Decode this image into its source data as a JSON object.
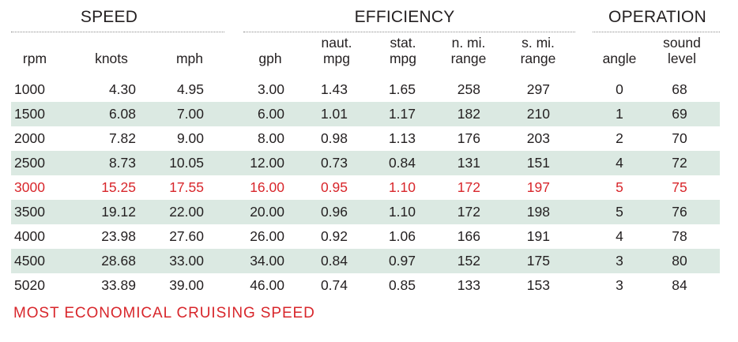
{
  "groups": {
    "speed": "SPEED",
    "efficiency": "EFFICIENCY",
    "operation": "OPERATION"
  },
  "headers": {
    "rpm": "rpm",
    "knots": "knots",
    "mph": "mph",
    "gph": "gph",
    "naut_mpg": [
      "naut.",
      "mpg"
    ],
    "stat_mpg": [
      "stat.",
      "mpg"
    ],
    "nmi_range": [
      "n. mi.",
      "range"
    ],
    "smi_range": [
      "s. mi.",
      "range"
    ],
    "angle": "angle",
    "sound_level": [
      "sound",
      "level"
    ]
  },
  "rows": [
    [
      "1000",
      "4.30",
      "4.95",
      "3.00",
      "1.43",
      "1.65",
      "258",
      "297",
      "0",
      "68"
    ],
    [
      "1500",
      "6.08",
      "7.00",
      "6.00",
      "1.01",
      "1.17",
      "182",
      "210",
      "1",
      "69"
    ],
    [
      "2000",
      "7.82",
      "9.00",
      "8.00",
      "0.98",
      "1.13",
      "176",
      "203",
      "2",
      "70"
    ],
    [
      "2500",
      "8.73",
      "10.05",
      "12.00",
      "0.73",
      "0.84",
      "131",
      "151",
      "4",
      "72"
    ],
    [
      "3000",
      "15.25",
      "17.55",
      "16.00",
      "0.95",
      "1.10",
      "172",
      "197",
      "5",
      "75"
    ],
    [
      "3500",
      "19.12",
      "22.00",
      "20.00",
      "0.96",
      "1.10",
      "172",
      "198",
      "5",
      "76"
    ],
    [
      "4000",
      "23.98",
      "27.60",
      "26.00",
      "0.92",
      "1.06",
      "166",
      "191",
      "4",
      "78"
    ],
    [
      "4500",
      "28.68",
      "33.00",
      "34.00",
      "0.84",
      "0.97",
      "152",
      "175",
      "3",
      "80"
    ],
    [
      "5020",
      "33.89",
      "39.00",
      "46.00",
      "0.74",
      "0.85",
      "133",
      "153",
      "3",
      "84"
    ]
  ],
  "highlight_row_index": 4,
  "footer": "MOST ECONOMICAL CRUISING SPEED",
  "colors": {
    "highlight": "#d8262b",
    "shade": "#dbe9e2",
    "text": "#231f20"
  }
}
